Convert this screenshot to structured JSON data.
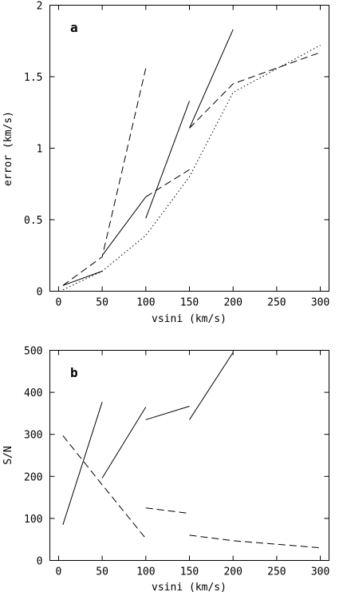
{
  "chart_data": [
    {
      "panel": "a",
      "type": "line",
      "xlabel": "vsini (km/s)",
      "ylabel": "error (km/s)",
      "xlim": [
        -10,
        310
      ],
      "ylim": [
        0,
        2
      ],
      "xticks": [
        0,
        50,
        100,
        150,
        200,
        250,
        300
      ],
      "xtick_labels": [
        "0",
        "50",
        "100",
        "150",
        "200",
        "250",
        "300"
      ],
      "yticks": [
        0,
        0.5,
        1,
        1.5,
        2
      ],
      "ytick_labels": [
        "0",
        "0.5",
        "1",
        "1.5",
        "2"
      ],
      "grid": false,
      "series": [
        {
          "style": "solid",
          "points": [
            [
              5,
              0.04
            ],
            [
              50,
              0.14
            ]
          ]
        },
        {
          "style": "solid",
          "points": [
            [
              50,
              0.25
            ],
            [
              100,
              0.66
            ]
          ]
        },
        {
          "style": "solid",
          "points": [
            [
              100,
              0.51
            ],
            [
              150,
              1.33
            ]
          ]
        },
        {
          "style": "solid",
          "points": [
            [
              150,
              1.14
            ],
            [
              200,
              1.83
            ]
          ]
        },
        {
          "style": "dashed",
          "points": [
            [
              5,
              0.04
            ],
            [
              50,
              0.24
            ],
            [
              100,
              1.56
            ]
          ]
        },
        {
          "style": "dashed",
          "points": [
            [
              100,
              0.66
            ],
            [
              150,
              0.85
            ]
          ]
        },
        {
          "style": "dashed",
          "points": [
            [
              150,
              1.14
            ],
            [
              200,
              1.45
            ],
            [
              300,
              1.67
            ]
          ]
        },
        {
          "style": "dotted",
          "points": [
            [
              5,
              0.01
            ],
            [
              50,
              0.14
            ],
            [
              100,
              0.39
            ],
            [
              150,
              0.8
            ],
            [
              200,
              1.39
            ],
            [
              300,
              1.72
            ]
          ]
        }
      ]
    },
    {
      "panel": "b",
      "type": "line",
      "xlabel": "vsini (km/s)",
      "ylabel": "S/N",
      "xlim": [
        -10,
        310
      ],
      "ylim": [
        0,
        500
      ],
      "xticks": [
        0,
        50,
        100,
        150,
        200,
        250,
        300
      ],
      "xtick_labels": [
        "0",
        "50",
        "100",
        "150",
        "200",
        "250",
        "300"
      ],
      "yticks": [
        0,
        100,
        200,
        300,
        400,
        500
      ],
      "ytick_labels": [
        "0",
        "100",
        "200",
        "300",
        "400",
        "500"
      ],
      "grid": false,
      "series": [
        {
          "style": "solid",
          "points": [
            [
              5,
              85
            ],
            [
              50,
              377
            ]
          ]
        },
        {
          "style": "solid",
          "points": [
            [
              50,
              196
            ],
            [
              100,
              365
            ]
          ]
        },
        {
          "style": "solid",
          "points": [
            [
              100,
              335
            ],
            [
              150,
              367
            ]
          ]
        },
        {
          "style": "solid",
          "points": [
            [
              150,
              335
            ],
            [
              200,
              495
            ]
          ]
        },
        {
          "style": "dashed",
          "points": [
            [
              5,
              297
            ],
            [
              50,
              180
            ],
            [
              100,
              52
            ]
          ]
        },
        {
          "style": "dashed",
          "points": [
            [
              100,
              125
            ],
            [
              150,
              112
            ]
          ]
        },
        {
          "style": "dashed",
          "points": [
            [
              150,
              60
            ],
            [
              200,
              47
            ],
            [
              300,
              30
            ]
          ]
        }
      ]
    }
  ]
}
